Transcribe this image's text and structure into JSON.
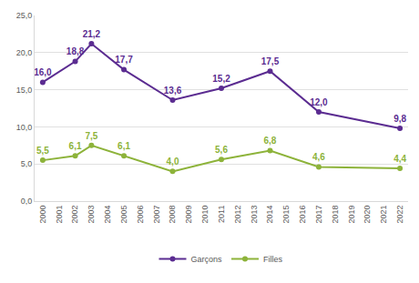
{
  "chart_data": {
    "type": "line",
    "x": [
      2000,
      2002,
      2003,
      2005,
      2008,
      2011,
      2014,
      2017,
      2022
    ],
    "series": [
      {
        "name": "Garçons",
        "color": "#5b2c91",
        "marker": "circle",
        "values": [
          16.0,
          18.8,
          21.2,
          17.7,
          13.6,
          15.2,
          17.5,
          12.0,
          9.8
        ],
        "value_labels": [
          "16,0",
          "18,8",
          "21,2",
          "17,7",
          "13,6",
          "15,2",
          "17,5",
          "12,0",
          "9,8"
        ]
      },
      {
        "name": "Filles",
        "color": "#8db33a",
        "marker": "circle",
        "values": [
          5.5,
          6.1,
          7.5,
          6.1,
          4.0,
          5.6,
          6.8,
          4.6,
          4.4
        ],
        "value_labels": [
          "5,5",
          "6,1",
          "7,5",
          "6,1",
          "4,0",
          "5,6",
          "6,8",
          "4,6",
          "4,4"
        ]
      }
    ],
    "xlim": [
      1999.5,
      2022.5
    ],
    "xticks": [
      2000,
      2001,
      2002,
      2003,
      2004,
      2005,
      2006,
      2007,
      2008,
      2009,
      2010,
      2011,
      2012,
      2013,
      2014,
      2015,
      2016,
      2017,
      2018,
      2019,
      2020,
      2021,
      2022
    ],
    "ylim": [
      0,
      25
    ],
    "yticks": [
      {
        "value": 0,
        "label": "0,0"
      },
      {
        "value": 5,
        "label": "5,0"
      },
      {
        "value": 10,
        "label": "10,0"
      },
      {
        "value": 15,
        "label": "15,0"
      },
      {
        "value": 20,
        "label": "20,0"
      },
      {
        "value": 25,
        "label": "25,0"
      }
    ],
    "grid": true,
    "legend": "bottom",
    "data_labels": true
  }
}
